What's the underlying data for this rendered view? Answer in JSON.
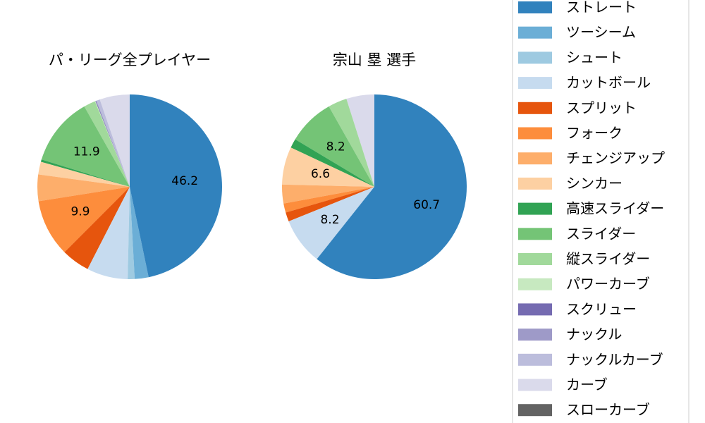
{
  "chart_data": [
    {
      "type": "pie",
      "title": "パ・リーグ全プレイヤー",
      "slices": [
        {
          "label": "ストレート",
          "value": 46.2,
          "color": "#3182bd",
          "pct_label": "46.2"
        },
        {
          "label": "ツーシーム",
          "value": 2.4,
          "color": "#6baed6",
          "pct_label": ""
        },
        {
          "label": "シュート",
          "value": 1.2,
          "color": "#9ecae1",
          "pct_label": ""
        },
        {
          "label": "カットボール",
          "value": 7.1,
          "color": "#c6dbef",
          "pct_label": ""
        },
        {
          "label": "スプリット",
          "value": 4.9,
          "color": "#e6550d",
          "pct_label": ""
        },
        {
          "label": "フォーク",
          "value": 9.9,
          "color": "#fd8d3c",
          "pct_label": "9.9"
        },
        {
          "label": "チェンジアップ",
          "value": 4.6,
          "color": "#fdae6b",
          "pct_label": ""
        },
        {
          "label": "シンカー",
          "value": 2.2,
          "color": "#fdd0a2",
          "pct_label": ""
        },
        {
          "label": "高速スライダー",
          "value": 0.4,
          "color": "#31a354",
          "pct_label": ""
        },
        {
          "label": "スライダー",
          "value": 11.9,
          "color": "#74c476",
          "pct_label": "11.9"
        },
        {
          "label": "縦スライダー",
          "value": 2.0,
          "color": "#a1d99b",
          "pct_label": ""
        },
        {
          "label": "パワーカーブ",
          "value": 0.1,
          "color": "#c7e9c0",
          "pct_label": ""
        },
        {
          "label": "スクリュー",
          "value": 0.1,
          "color": "#756bb1",
          "pct_label": ""
        },
        {
          "label": "ナックル",
          "value": 0.1,
          "color": "#9e9ac8",
          "pct_label": ""
        },
        {
          "label": "ナックルカーブ",
          "value": 0.6,
          "color": "#bcbddc",
          "pct_label": ""
        },
        {
          "label": "カーブ",
          "value": 5.2,
          "color": "#dadaeb",
          "pct_label": ""
        },
        {
          "label": "スローカーブ",
          "value": 0.0,
          "color": "#636363",
          "pct_label": ""
        }
      ]
    },
    {
      "type": "pie",
      "title": "宗山 塁  選手",
      "slices": [
        {
          "label": "ストレート",
          "value": 60.7,
          "color": "#3182bd",
          "pct_label": "60.7"
        },
        {
          "label": "ツーシーム",
          "value": 0.0,
          "color": "#6baed6",
          "pct_label": ""
        },
        {
          "label": "シュート",
          "value": 0.0,
          "color": "#9ecae1",
          "pct_label": ""
        },
        {
          "label": "カットボール",
          "value": 8.2,
          "color": "#c6dbef",
          "pct_label": "8.2"
        },
        {
          "label": "スプリット",
          "value": 1.6,
          "color": "#e6550d",
          "pct_label": ""
        },
        {
          "label": "フォーク",
          "value": 1.6,
          "color": "#fd8d3c",
          "pct_label": ""
        },
        {
          "label": "チェンジアップ",
          "value": 3.3,
          "color": "#fdae6b",
          "pct_label": ""
        },
        {
          "label": "シンカー",
          "value": 6.6,
          "color": "#fdd0a2",
          "pct_label": "6.6"
        },
        {
          "label": "高速スライダー",
          "value": 1.6,
          "color": "#31a354",
          "pct_label": ""
        },
        {
          "label": "スライダー",
          "value": 8.2,
          "color": "#74c476",
          "pct_label": "8.2"
        },
        {
          "label": "縦スライダー",
          "value": 3.3,
          "color": "#a1d99b",
          "pct_label": ""
        },
        {
          "label": "パワーカーブ",
          "value": 0.0,
          "color": "#c7e9c0",
          "pct_label": ""
        },
        {
          "label": "スクリュー",
          "value": 0.0,
          "color": "#756bb1",
          "pct_label": ""
        },
        {
          "label": "ナックル",
          "value": 0.0,
          "color": "#9e9ac8",
          "pct_label": ""
        },
        {
          "label": "ナックルカーブ",
          "value": 0.0,
          "color": "#bcbddc",
          "pct_label": ""
        },
        {
          "label": "カーブ",
          "value": 4.9,
          "color": "#dadaeb",
          "pct_label": ""
        },
        {
          "label": "スローカーブ",
          "value": 0.0,
          "color": "#636363",
          "pct_label": ""
        }
      ]
    }
  ],
  "legend": {
    "placement": "right",
    "items": [
      {
        "label": "ストレート",
        "color": "#3182bd"
      },
      {
        "label": "ツーシーム",
        "color": "#6baed6"
      },
      {
        "label": "シュート",
        "color": "#9ecae1"
      },
      {
        "label": "カットボール",
        "color": "#c6dbef"
      },
      {
        "label": "スプリット",
        "color": "#e6550d"
      },
      {
        "label": "フォーク",
        "color": "#fd8d3c"
      },
      {
        "label": "チェンジアップ",
        "color": "#fdae6b"
      },
      {
        "label": "シンカー",
        "color": "#fdd0a2"
      },
      {
        "label": "高速スライダー",
        "color": "#31a354"
      },
      {
        "label": "スライダー",
        "color": "#74c476"
      },
      {
        "label": "縦スライダー",
        "color": "#a1d99b"
      },
      {
        "label": "パワーカーブ",
        "color": "#c7e9c0"
      },
      {
        "label": "スクリュー",
        "color": "#756bb1"
      },
      {
        "label": "ナックル",
        "color": "#9e9ac8"
      },
      {
        "label": "ナックルカーブ",
        "color": "#bcbddc"
      },
      {
        "label": "カーブ",
        "color": "#dadaeb"
      },
      {
        "label": "スローカーブ",
        "color": "#636363"
      }
    ]
  }
}
